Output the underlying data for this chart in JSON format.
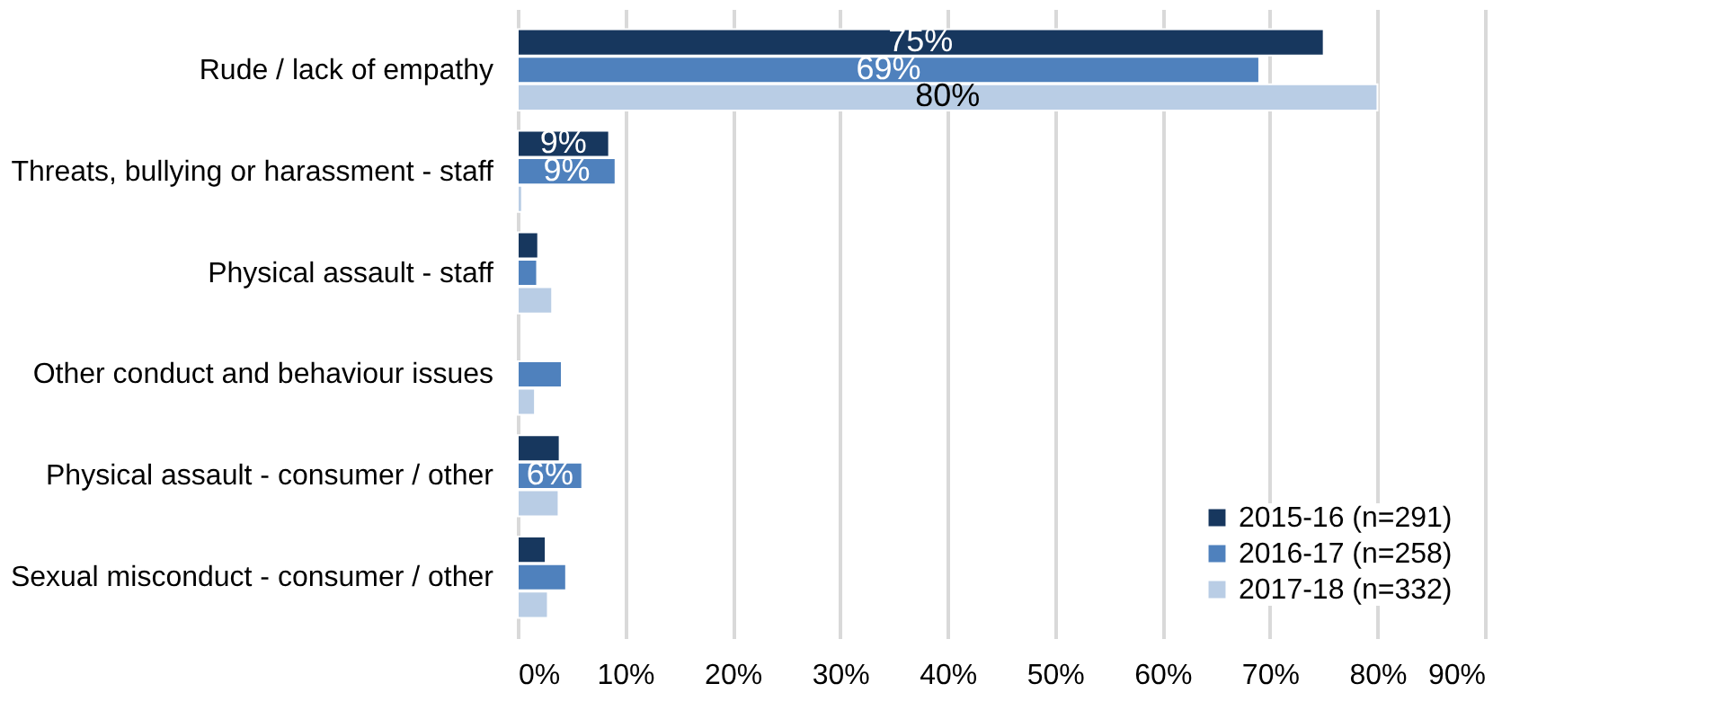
{
  "chart_data": {
    "type": "bar",
    "orientation": "horizontal",
    "categories": [
      "Rude / lack of empathy",
      "Threats, bullying or harassment - staff",
      "Physical assault - staff",
      "Other conduct and behaviour issues",
      "Physical assault - consumer / other",
      "Sexual misconduct - consumer / other"
    ],
    "series": [
      {
        "name": "2015-16 (n=291)",
        "color": "#17375e",
        "values": [
          75,
          8.5,
          1.9,
          null,
          3.9,
          2.6
        ],
        "value_labels": [
          "75%",
          "9%",
          null,
          null,
          null,
          null
        ]
      },
      {
        "name": "2016-17 (n=258)",
        "color": "#4f81bd",
        "values": [
          69,
          9.1,
          1.8,
          4.1,
          6.0,
          4.5
        ],
        "value_labels": [
          "69%",
          "9%",
          null,
          null,
          "6%",
          null
        ]
      },
      {
        "name": "2017-18 (n=332)",
        "color": "#b9cde5",
        "values": [
          80,
          0.4,
          3.2,
          1.6,
          3.8,
          2.8
        ],
        "value_labels": [
          "80%",
          null,
          null,
          null,
          null,
          null
        ]
      }
    ],
    "xlim": [
      0,
      90
    ],
    "xticks": [
      {
        "value": 0,
        "label": "0%"
      },
      {
        "value": 10,
        "label": "10%"
      },
      {
        "value": 20,
        "label": "20%"
      },
      {
        "value": 30,
        "label": "30%"
      },
      {
        "value": 40,
        "label": "40%"
      },
      {
        "value": 50,
        "label": "50%"
      },
      {
        "value": 60,
        "label": "60%"
      },
      {
        "value": 70,
        "label": "70%"
      },
      {
        "value": 80,
        "label": "80%"
      },
      {
        "value": 90,
        "label": "90%"
      }
    ],
    "grid": "x",
    "legend": "bottom right"
  }
}
